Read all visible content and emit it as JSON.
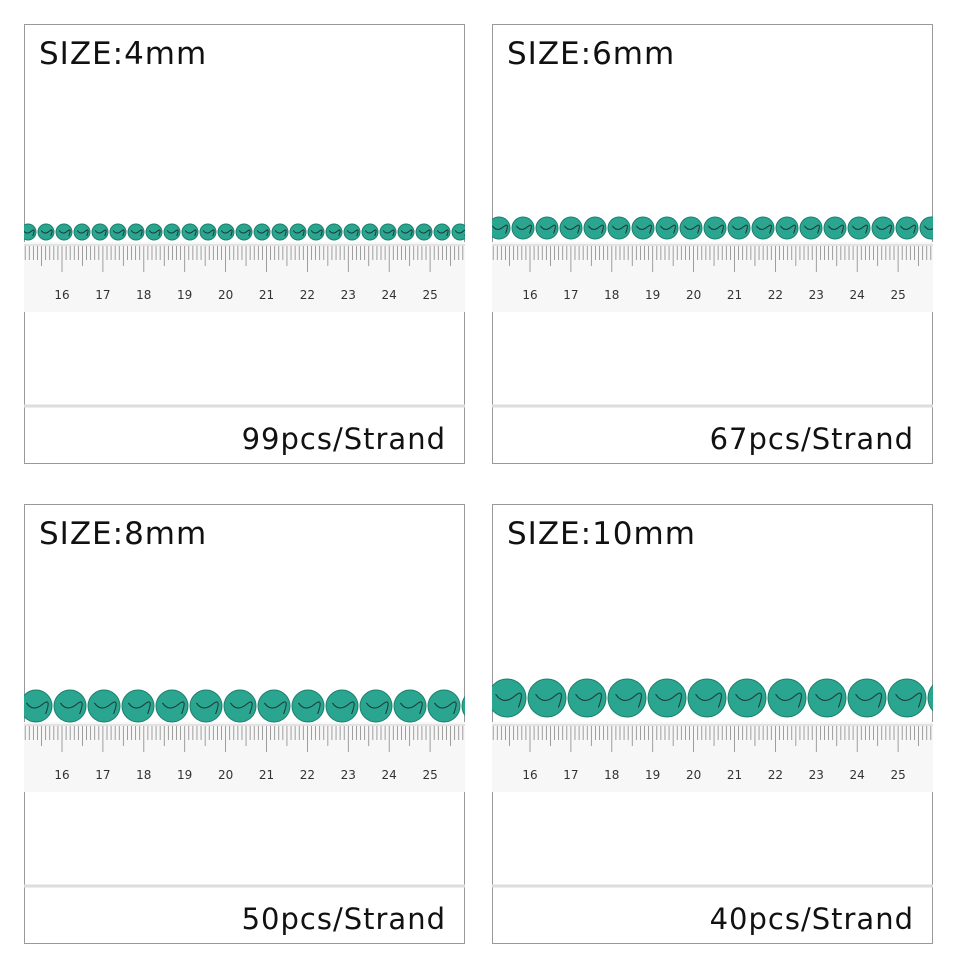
{
  "panels": [
    {
      "size": "SIZE:4mm",
      "count": "99pcs/Strand",
      "ruler": [
        "16",
        "17",
        "18",
        "19",
        "20",
        "21",
        "22",
        "23",
        "24",
        "25"
      ]
    },
    {
      "size": "SIZE:6mm",
      "count": "67pcs/Strand",
      "ruler": [
        "16",
        "17",
        "18",
        "19",
        "20",
        "21",
        "22",
        "23",
        "24",
        "25"
      ]
    },
    {
      "size": "SIZE:8mm",
      "count": "50pcs/Strand",
      "ruler": [
        "16",
        "17",
        "18",
        "19",
        "20",
        "21",
        "22",
        "23",
        "24",
        "25"
      ]
    },
    {
      "size": "SIZE:10mm",
      "count": "40pcs/Strand",
      "ruler": [
        "16",
        "17",
        "18",
        "19",
        "20",
        "21",
        "22",
        "23",
        "24",
        "25"
      ]
    }
  ]
}
